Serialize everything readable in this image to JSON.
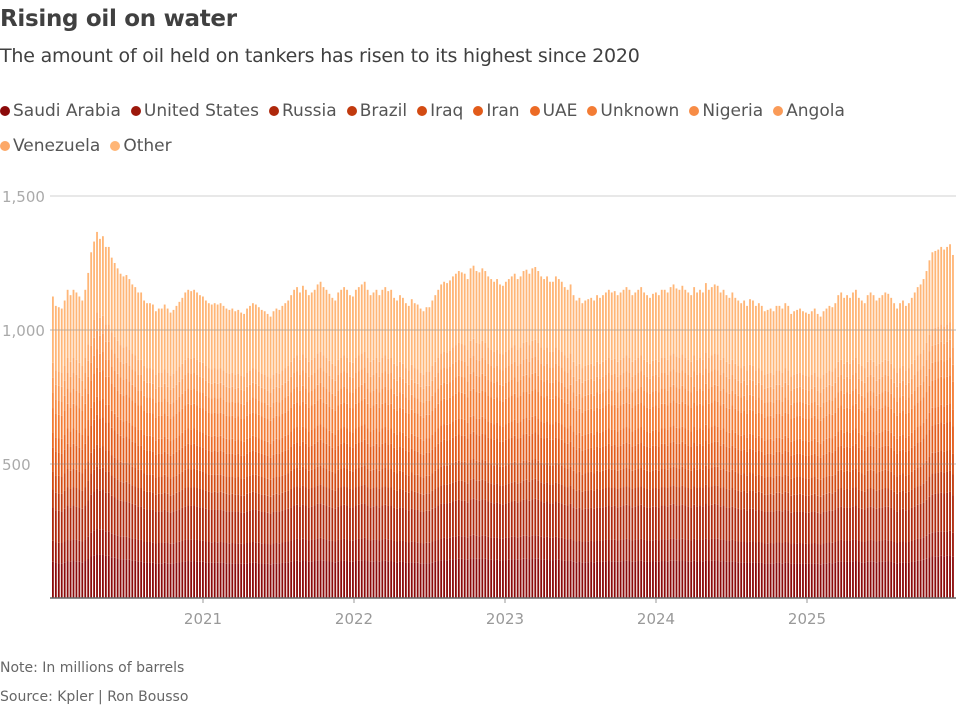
{
  "title": "Rising oil on water",
  "subtitle": "The amount of oil held on tankers has risen to its highest since 2020",
  "note": "Note: In millions of barrels",
  "source": "Source: Kpler | Ron Bousso",
  "chart_data": {
    "type": "bar",
    "stacked": true,
    "title": "Rising oil on water",
    "xlabel": "",
    "ylabel": "",
    "ylim": [
      0,
      1500
    ],
    "y_ticks": [
      {
        "value": 500,
        "label": "500"
      },
      {
        "value": 1000,
        "label": "1,000"
      },
      {
        "value": 1500,
        "label": "1,500"
      }
    ],
    "x_ticks": [
      "2021",
      "2022",
      "2023",
      "2024",
      "2025"
    ],
    "x_range": [
      "2020",
      "2025"
    ],
    "frequency": "weekly",
    "grid": true,
    "legend_placement": "top",
    "series": [
      {
        "name": "Saudi Arabia",
        "color": "#8b0a0a",
        "share": 0.12
      },
      {
        "name": "United States",
        "color": "#9c180b",
        "share": 0.07
      },
      {
        "name": "Russia",
        "color": "#ae280c",
        "share": 0.11
      },
      {
        "name": "Brazil",
        "color": "#c13a0e",
        "share": 0.06
      },
      {
        "name": "Iraq",
        "color": "#d34b12",
        "share": 0.06
      },
      {
        "name": "Iran",
        "color": "#e25b1a",
        "share": 0.08
      },
      {
        "name": "UAE",
        "color": "#ec6b25",
        "share": 0.05
      },
      {
        "name": "Unknown",
        "color": "#f37c34",
        "share": 0.08
      },
      {
        "name": "Nigeria",
        "color": "#f78c46",
        "share": 0.05
      },
      {
        "name": "Angola",
        "color": "#fa9b58",
        "share": 0.05
      },
      {
        "name": "Venezuela",
        "color": "#fca868",
        "share": 0.05
      },
      {
        "name": "Other",
        "color": "#ffb677",
        "share": 0.22
      }
    ],
    "totals": [
      1125,
      1090,
      1085,
      1080,
      1110,
      1150,
      1130,
      1150,
      1140,
      1125,
      1110,
      1150,
      1213,
      1290,
      1330,
      1366,
      1340,
      1350,
      1310,
      1310,
      1270,
      1250,
      1230,
      1210,
      1200,
      1205,
      1190,
      1170,
      1160,
      1140,
      1140,
      1110,
      1100,
      1100,
      1095,
      1070,
      1080,
      1080,
      1095,
      1080,
      1065,
      1075,
      1090,
      1105,
      1120,
      1140,
      1150,
      1145,
      1150,
      1140,
      1130,
      1125,
      1110,
      1100,
      1095,
      1100,
      1095,
      1100,
      1090,
      1080,
      1075,
      1080,
      1070,
      1075,
      1065,
      1060,
      1080,
      1090,
      1100,
      1095,
      1085,
      1075,
      1070,
      1060,
      1050,
      1070,
      1080,
      1075,
      1090,
      1100,
      1110,
      1130,
      1150,
      1160,
      1140,
      1165,
      1150,
      1130,
      1140,
      1150,
      1170,
      1180,
      1160,
      1150,
      1135,
      1120,
      1110,
      1140,
      1150,
      1160,
      1150,
      1130,
      1125,
      1150,
      1160,
      1170,
      1180,
      1150,
      1130,
      1140,
      1150,
      1130,
      1150,
      1160,
      1145,
      1150,
      1120,
      1110,
      1130,
      1120,
      1100,
      1090,
      1115,
      1100,
      1095,
      1080,
      1070,
      1085,
      1085,
      1110,
      1130,
      1150,
      1170,
      1180,
      1175,
      1185,
      1200,
      1210,
      1220,
      1215,
      1210,
      1190,
      1230,
      1240,
      1220,
      1215,
      1230,
      1220,
      1200,
      1190,
      1180,
      1190,
      1170,
      1165,
      1180,
      1190,
      1200,
      1210,
      1190,
      1200,
      1220,
      1225,
      1210,
      1230,
      1235,
      1220,
      1200,
      1190,
      1200,
      1180,
      1180,
      1200,
      1190,
      1180,
      1160,
      1150,
      1170,
      1130,
      1110,
      1120,
      1100,
      1110,
      1115,
      1120,
      1110,
      1130,
      1120,
      1130,
      1140,
      1150,
      1140,
      1145,
      1130,
      1140,
      1150,
      1160,
      1150,
      1130,
      1140,
      1150,
      1160,
      1140,
      1130,
      1120,
      1135,
      1140,
      1130,
      1150,
      1150,
      1140,
      1160,
      1170,
      1155,
      1150,
      1165,
      1150,
      1140,
      1130,
      1160,
      1140,
      1150,
      1140,
      1175,
      1150,
      1160,
      1170,
      1165,
      1140,
      1150,
      1130,
      1120,
      1140,
      1120,
      1110,
      1100,
      1110,
      1090,
      1115,
      1110,
      1090,
      1100,
      1090,
      1070,
      1075,
      1080,
      1070,
      1090,
      1090,
      1080,
      1100,
      1090,
      1060,
      1070,
      1075,
      1080,
      1070,
      1065,
      1060,
      1070,
      1080,
      1060,
      1050,
      1070,
      1080,
      1090,
      1085,
      1100,
      1130,
      1140,
      1120,
      1130,
      1120,
      1140,
      1150,
      1120,
      1110,
      1100,
      1130,
      1140,
      1130,
      1110,
      1120,
      1130,
      1140,
      1135,
      1120,
      1100,
      1080,
      1100,
      1110,
      1090,
      1100,
      1120,
      1140,
      1160,
      1170,
      1190,
      1220,
      1260,
      1290,
      1295,
      1300,
      1310,
      1300,
      1310,
      1320,
      1280
    ]
  }
}
